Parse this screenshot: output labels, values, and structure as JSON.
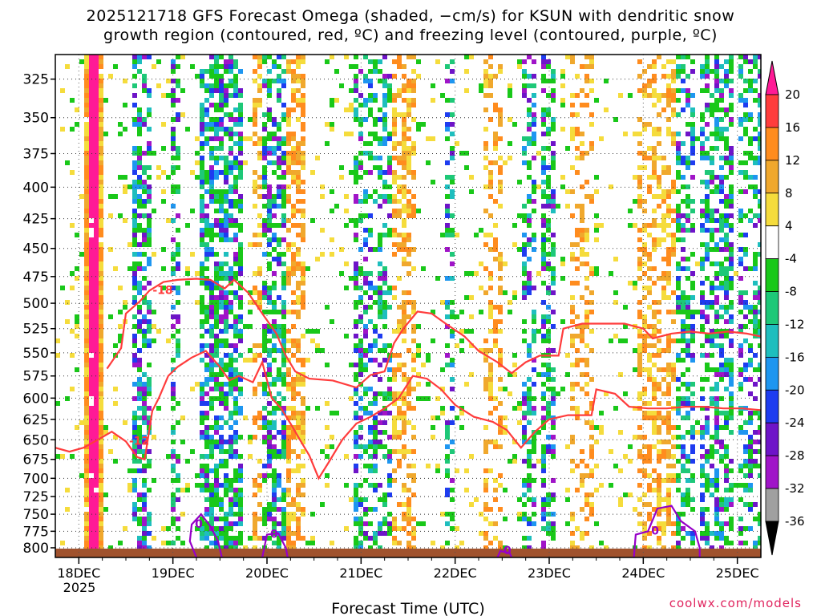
{
  "chart_data": {
    "type": "heatmap",
    "title": "2025121718 GFS Forecast Omega (shaded, −cm/s) for KSUN with dendritic snow",
    "subtitle": "growth region (contoured, red, ºC) and freezing level (contoured, purple, ºC)",
    "xlabel": "Forecast Time (UTC)",
    "ylabel": "",
    "x_tick_labels": [
      "18DEC",
      "19DEC",
      "20DEC",
      "21DEC",
      "22DEC",
      "23DEC",
      "24DEC",
      "25DEC"
    ],
    "x_year_label": "2025",
    "y_ticks": [
      325,
      350,
      375,
      400,
      425,
      450,
      475,
      500,
      525,
      550,
      575,
      600,
      625,
      650,
      675,
      700,
      725,
      750,
      775,
      800
    ],
    "y_scale": "log-pressure (top 310, bottom 815)",
    "x_range_days_from_18DEC": [
      -0.25,
      7.25
    ],
    "colorbar": {
      "labels": [
        "20",
        "16",
        "12",
        "8",
        "4",
        "-4",
        "-8",
        "-12",
        "-16",
        "-20",
        "-24",
        "-28",
        "-32",
        "-36"
      ],
      "colors": [
        "#ff1a96",
        "#ff3c3c",
        "#ff8c1e",
        "#f0a82d",
        "#f5dc3c",
        "#ffffff",
        "#19c819",
        "#1ec878",
        "#1ebebe",
        "#1e96f0",
        "#1e3cf0",
        "#6e14c8",
        "#a014c8",
        "#a0a0a0",
        "#000000"
      ]
    },
    "contours": [
      {
        "label": "-18",
        "color": "#ff3c3c",
        "kind": "dendritic snow growth",
        "points": [
          [
            0.3,
            567
          ],
          [
            0.45,
            545
          ],
          [
            0.5,
            510
          ],
          [
            0.65,
            498
          ],
          [
            0.75,
            488
          ],
          [
            0.9,
            480
          ],
          [
            1.05,
            478
          ],
          [
            1.25,
            477
          ],
          [
            1.4,
            478
          ],
          [
            1.55,
            486
          ],
          [
            1.65,
            478
          ],
          [
            1.8,
            490
          ],
          [
            1.95,
            510
          ],
          [
            2.1,
            530
          ],
          [
            2.2,
            553
          ],
          [
            2.3,
            570
          ],
          [
            2.45,
            578
          ],
          [
            2.7,
            580
          ],
          [
            2.95,
            588
          ],
          [
            3.1,
            574
          ],
          [
            3.25,
            570
          ],
          [
            3.35,
            540
          ],
          [
            3.45,
            525
          ],
          [
            3.6,
            508
          ],
          [
            3.75,
            510
          ],
          [
            3.9,
            520
          ],
          [
            4.1,
            533
          ],
          [
            4.25,
            548
          ],
          [
            4.45,
            560
          ],
          [
            4.6,
            572
          ],
          [
            4.75,
            560
          ],
          [
            4.9,
            553
          ],
          [
            5.1,
            553
          ],
          [
            5.15,
            525
          ],
          [
            5.35,
            520
          ],
          [
            5.6,
            520
          ],
          [
            5.8,
            520
          ],
          [
            6.0,
            525
          ],
          [
            6.1,
            535
          ],
          [
            6.3,
            530
          ],
          [
            6.5,
            528
          ],
          [
            6.7,
            530
          ],
          [
            6.9,
            528
          ],
          [
            7.1,
            530
          ],
          [
            7.25,
            533
          ]
        ]
      },
      {
        "label": "-12",
        "color": "#ff3c3c",
        "kind": "dendritic snow growth",
        "points": [
          [
            -0.25,
            660
          ],
          [
            -0.1,
            665
          ],
          [
            0.05,
            660
          ],
          [
            0.2,
            650
          ],
          [
            0.35,
            640
          ],
          [
            0.5,
            652
          ],
          [
            0.62,
            672
          ],
          [
            0.7,
            675
          ],
          [
            0.78,
            615
          ],
          [
            0.85,
            600
          ],
          [
            0.95,
            575
          ],
          [
            1.05,
            565
          ],
          [
            1.2,
            555
          ],
          [
            1.35,
            548
          ],
          [
            1.5,
            565
          ],
          [
            1.6,
            580
          ],
          [
            1.7,
            575
          ],
          [
            1.85,
            582
          ],
          [
            1.95,
            560
          ],
          [
            2.05,
            600
          ],
          [
            2.15,
            612
          ],
          [
            2.25,
            630
          ],
          [
            2.35,
            650
          ],
          [
            2.45,
            670
          ],
          [
            2.55,
            700
          ],
          [
            2.65,
            680
          ],
          [
            2.8,
            650
          ],
          [
            2.95,
            630
          ],
          [
            3.1,
            622
          ],
          [
            3.25,
            612
          ],
          [
            3.4,
            600
          ],
          [
            3.55,
            575
          ],
          [
            3.7,
            578
          ],
          [
            3.85,
            590
          ],
          [
            4.0,
            608
          ],
          [
            4.2,
            622
          ],
          [
            4.4,
            628
          ],
          [
            4.55,
            638
          ],
          [
            4.7,
            660
          ],
          [
            4.85,
            640
          ],
          [
            5.0,
            625
          ],
          [
            5.2,
            620
          ],
          [
            5.45,
            620
          ],
          [
            5.5,
            590
          ],
          [
            5.7,
            595
          ],
          [
            5.85,
            610
          ],
          [
            6.05,
            612
          ],
          [
            6.25,
            612
          ],
          [
            6.45,
            610
          ],
          [
            6.65,
            610
          ],
          [
            6.85,
            612
          ],
          [
            7.05,
            612
          ],
          [
            7.25,
            614
          ]
        ]
      },
      {
        "label": "0",
        "color": "#9600c8",
        "kind": "freezing level",
        "points": [
          [
            1.25,
            815
          ],
          [
            1.18,
            790
          ],
          [
            1.2,
            765
          ],
          [
            1.3,
            750
          ],
          [
            1.4,
            768
          ],
          [
            1.48,
            790
          ],
          [
            1.52,
            815
          ]
        ]
      },
      {
        "label": "0",
        "color": "#9600c8",
        "kind": "freezing level",
        "points": [
          [
            1.95,
            815
          ],
          [
            2.0,
            780
          ],
          [
            2.12,
            778
          ],
          [
            2.2,
            800
          ],
          [
            2.22,
            815
          ]
        ]
      },
      {
        "label": "0",
        "color": "#9600c8",
        "kind": "freezing level",
        "points": [
          [
            5.9,
            815
          ],
          [
            5.92,
            780
          ],
          [
            6.05,
            775
          ],
          [
            6.15,
            742
          ],
          [
            6.3,
            738
          ],
          [
            6.4,
            760
          ],
          [
            6.55,
            775
          ],
          [
            6.6,
            800
          ],
          [
            6.6,
            815
          ]
        ]
      },
      {
        "label": "0",
        "color": "#9600c8",
        "kind": "freezing level",
        "points": [
          [
            4.45,
            815
          ],
          [
            4.48,
            805
          ],
          [
            4.58,
            808
          ],
          [
            4.6,
            815
          ]
        ]
      }
    ]
  },
  "footer": {
    "credit": "coolwx.com/models"
  }
}
